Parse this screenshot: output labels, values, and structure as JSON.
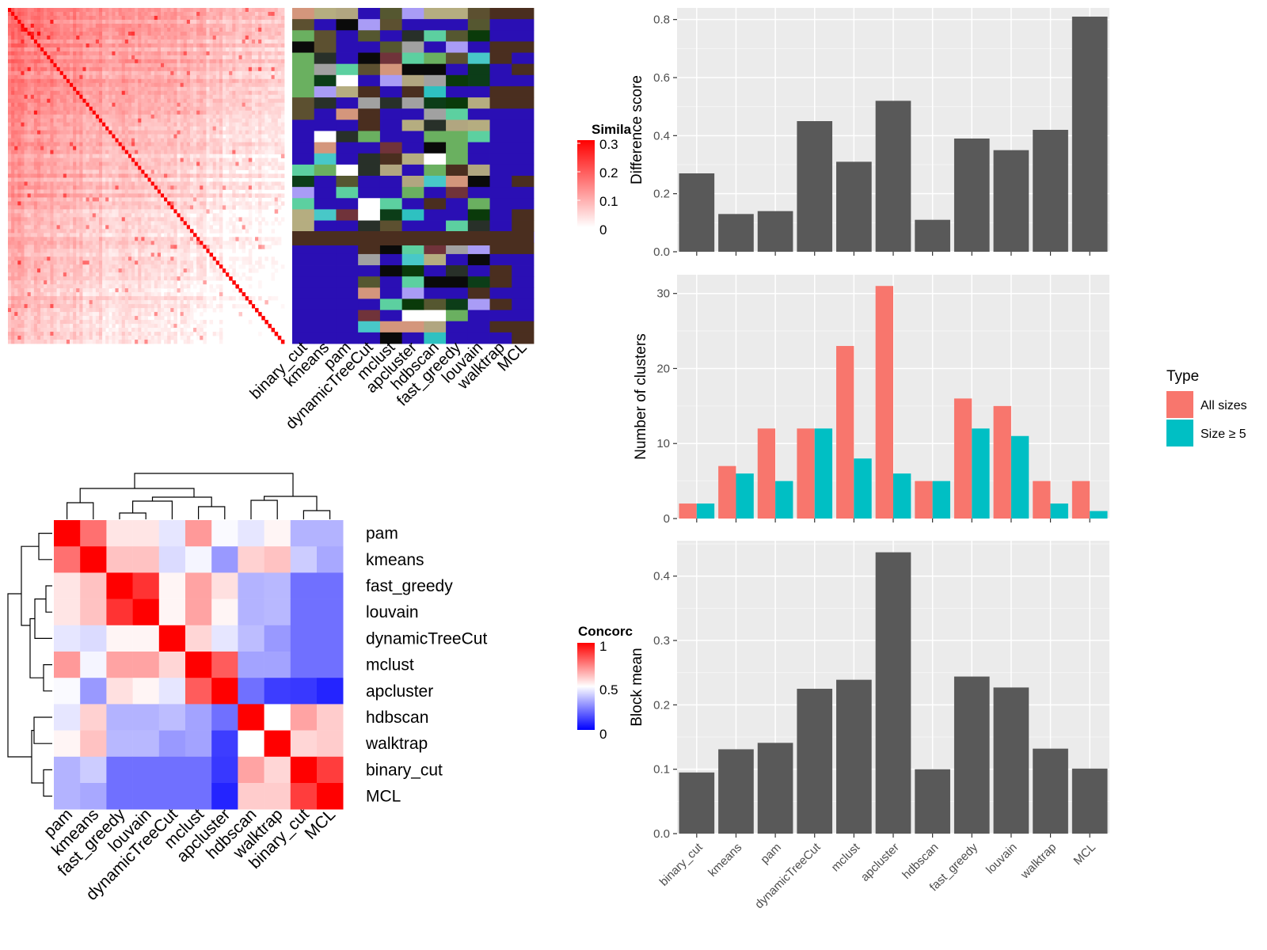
{
  "methods": [
    "binary_cut",
    "kmeans",
    "pam",
    "dynamicTreeCut",
    "mclust",
    "apcluster",
    "hdbscan",
    "fast_greedy",
    "louvain",
    "walktrap",
    "MCL"
  ],
  "similarity_panel": {
    "legend_title": "Simila",
    "legend_ticks": [
      "0.3",
      "0.2",
      "0.1",
      "0"
    ],
    "colors": {
      "low": "#ffffff",
      "high": "#ff0000"
    }
  },
  "concordance_panel": {
    "legend_title": "Concorc",
    "legend_ticks": [
      "1",
      "0.5",
      "0"
    ],
    "row_order": [
      "pam",
      "kmeans",
      "fast_greedy",
      "louvain",
      "dynamicTreeCut",
      "mclust",
      "apcluster",
      "hdbscan",
      "walktrap",
      "binary_cut",
      "MCL"
    ],
    "matrix": [
      [
        1.0,
        0.78,
        0.55,
        0.55,
        0.45,
        0.7,
        0.49,
        0.45,
        0.52,
        0.35,
        0.35
      ],
      [
        0.78,
        1.0,
        0.62,
        0.62,
        0.43,
        0.48,
        0.3,
        0.59,
        0.62,
        0.4,
        0.33
      ],
      [
        0.55,
        0.62,
        1.0,
        0.9,
        0.52,
        0.68,
        0.56,
        0.35,
        0.36,
        0.22,
        0.22
      ],
      [
        0.55,
        0.62,
        0.9,
        1.0,
        0.52,
        0.68,
        0.52,
        0.35,
        0.36,
        0.22,
        0.22
      ],
      [
        0.45,
        0.43,
        0.52,
        0.52,
        1.0,
        0.58,
        0.45,
        0.37,
        0.3,
        0.22,
        0.22
      ],
      [
        0.7,
        0.48,
        0.68,
        0.68,
        0.58,
        1.0,
        0.82,
        0.32,
        0.32,
        0.22,
        0.22
      ],
      [
        0.49,
        0.3,
        0.56,
        0.52,
        0.45,
        0.82,
        1.0,
        0.22,
        0.12,
        0.11,
        0.07
      ],
      [
        0.45,
        0.59,
        0.35,
        0.35,
        0.37,
        0.32,
        0.22,
        1.0,
        0.5,
        0.68,
        0.6
      ],
      [
        0.52,
        0.62,
        0.36,
        0.36,
        0.3,
        0.32,
        0.12,
        0.5,
        1.0,
        0.58,
        0.6
      ],
      [
        0.35,
        0.4,
        0.22,
        0.22,
        0.22,
        0.22,
        0.11,
        0.68,
        0.58,
        1.0,
        0.88
      ],
      [
        0.35,
        0.33,
        0.22,
        0.22,
        0.22,
        0.22,
        0.07,
        0.6,
        0.6,
        0.88,
        1.0
      ]
    ],
    "colors": {
      "low": "#0000ff",
      "mid": "#ffffff",
      "high": "#ff0000"
    }
  },
  "chart_data": [
    {
      "type": "bar",
      "categories": [
        "binary_cut",
        "kmeans",
        "pam",
        "dynamicTreeCut",
        "mclust",
        "apcluster",
        "hdbscan",
        "fast_greedy",
        "louvain",
        "walktrap",
        "MCL"
      ],
      "values": [
        0.27,
        0.13,
        0.14,
        0.45,
        0.31,
        0.52,
        0.11,
        0.39,
        0.35,
        0.42,
        0.81
      ],
      "ylabel": "Difference score",
      "ylim": [
        0,
        0.84
      ],
      "yticks": [
        0.0,
        0.2,
        0.4,
        0.6,
        0.8
      ],
      "ytick_labels": [
        "0.0",
        "0.2",
        "0.4",
        "0.6",
        "0.8"
      ],
      "bar_color": "#595959",
      "grid": true
    },
    {
      "type": "bar",
      "categories": [
        "binary_cut",
        "kmeans",
        "pam",
        "dynamicTreeCut",
        "mclust",
        "apcluster",
        "hdbscan",
        "fast_greedy",
        "louvain",
        "walktrap",
        "MCL"
      ],
      "series": [
        {
          "name": "All sizes",
          "color": "#f8766d",
          "values": [
            2,
            7,
            12,
            12,
            23,
            31,
            5,
            16,
            15,
            5,
            5
          ]
        },
        {
          "name": "Size ≥ 5",
          "color": "#00bfc4",
          "values": [
            2,
            6,
            5,
            12,
            8,
            6,
            5,
            12,
            11,
            2,
            1
          ]
        }
      ],
      "ylabel": "Number of clusters",
      "ylim": [
        0,
        32.5
      ],
      "yticks": [
        0,
        10,
        20,
        30
      ],
      "ytick_labels": [
        "0",
        "10",
        "20",
        "30"
      ],
      "legend_title": "Type",
      "legend_position": "right",
      "grid": true
    },
    {
      "type": "bar",
      "categories": [
        "binary_cut",
        "kmeans",
        "pam",
        "dynamicTreeCut",
        "mclust",
        "apcluster",
        "hdbscan",
        "fast_greedy",
        "louvain",
        "walktrap",
        "MCL"
      ],
      "values": [
        0.095,
        0.131,
        0.141,
        0.225,
        0.239,
        0.437,
        0.1,
        0.244,
        0.227,
        0.132,
        0.101
      ],
      "ylabel": "Block mean",
      "ylim": [
        0,
        0.455
      ],
      "yticks": [
        0.0,
        0.1,
        0.2,
        0.3,
        0.4
      ],
      "ytick_labels": [
        "0.0",
        "0.1",
        "0.2",
        "0.3",
        "0.4"
      ],
      "bar_color": "#595959",
      "grid": true
    }
  ]
}
